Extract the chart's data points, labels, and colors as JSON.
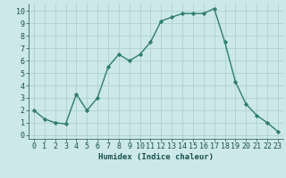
{
  "x": [
    0,
    1,
    2,
    3,
    4,
    5,
    6,
    7,
    8,
    9,
    10,
    11,
    12,
    13,
    14,
    15,
    16,
    17,
    18,
    19,
    20,
    21,
    22,
    23
  ],
  "y": [
    2,
    1.3,
    1.0,
    0.9,
    3.3,
    2.0,
    3.0,
    5.5,
    6.5,
    6.0,
    6.5,
    7.5,
    9.2,
    9.5,
    9.8,
    9.8,
    9.8,
    10.2,
    7.5,
    4.3,
    2.5,
    1.6,
    1.0,
    0.3
  ],
  "line_color": "#2e7d6e",
  "marker": "D",
  "marker_size": 2.2,
  "bg_color": "#cce8e8",
  "grid_color": "#aacece",
  "xlabel": "Humidex (Indice chaleur)",
  "xlim": [
    -0.5,
    23.5
  ],
  "ylim": [
    -0.3,
    10.6
  ],
  "xtick_labels": [
    "0",
    "1",
    "2",
    "3",
    "4",
    "5",
    "6",
    "7",
    "8",
    "9",
    "10",
    "11",
    "12",
    "13",
    "14",
    "15",
    "16",
    "17",
    "18",
    "19",
    "20",
    "21",
    "22",
    "23"
  ],
  "ytick_values": [
    0,
    1,
    2,
    3,
    4,
    5,
    6,
    7,
    8,
    9,
    10
  ],
  "tick_color": "#1a5050",
  "label_color": "#1a5050",
  "tick_fontsize": 6.0,
  "xlabel_fontsize": 6.5
}
